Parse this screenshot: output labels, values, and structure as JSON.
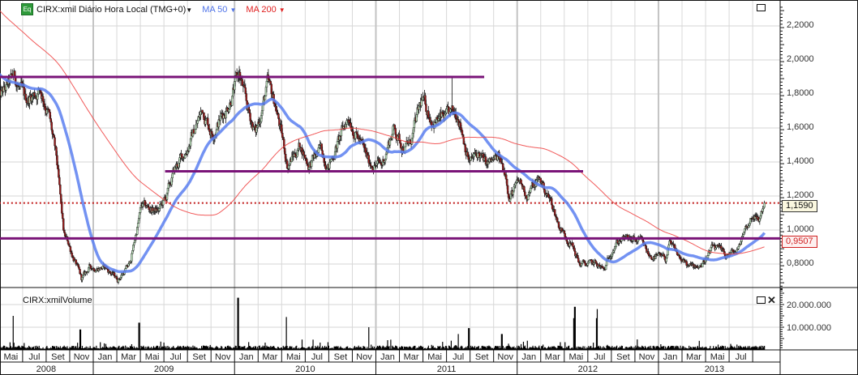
{
  "header": {
    "badge": "Eq",
    "symbol_label": "CIRX:xmil Diário Hora Local (TMG+0)",
    "ma50_label": "MA 50",
    "ma200_label": "MA 200"
  },
  "volume_pane": {
    "title": "CIRX:xmilVolume"
  },
  "price_tags": {
    "last": "1,1590",
    "level": "0,9507"
  },
  "colors": {
    "ma50": "#5b7ff0",
    "ma200": "#f04848",
    "levels": "#7a1478",
    "dotted": "#c01818",
    "up": "#bfe3bf",
    "down": "#9b1c1c"
  },
  "chart_data": {
    "type": "candlestick",
    "title": "CIRX:xmil Diário Hora Local (TMG+0)",
    "x_unit": "months since Jan 2008",
    "xlim": [
      4.0,
      69.5
    ],
    "price_ylim": [
      0.63,
      2.32
    ],
    "price_ticks": [
      {
        "v": 2.2,
        "label": "2,2000"
      },
      {
        "v": 2.0,
        "label": "2,0000"
      },
      {
        "v": 1.8,
        "label": "1,8000"
      },
      {
        "v": 1.6,
        "label": "1,6000"
      },
      {
        "v": 1.4,
        "label": "1,4000"
      },
      {
        "v": 1.2,
        "label": "1,2000"
      },
      {
        "v": 1.0,
        "label": "1,0000"
      },
      {
        "v": 0.8,
        "label": "0,8000"
      }
    ],
    "volume_ticks": [
      {
        "v": 20000000,
        "label": "20.000.000"
      },
      {
        "v": 10000000,
        "label": "10.000.000"
      }
    ],
    "close_path": [
      [
        4.1,
        1.78
      ],
      [
        5.3,
        1.9
      ],
      [
        6.2,
        1.76
      ],
      [
        7.5,
        1.83
      ],
      [
        8.2,
        1.69
      ],
      [
        8.9,
        1.4
      ],
      [
        9.5,
        0.97
      ],
      [
        9.9,
        0.92
      ],
      [
        11.0,
        0.71
      ],
      [
        11.7,
        0.78
      ],
      [
        13.0,
        0.78
      ],
      [
        14.1,
        0.71
      ],
      [
        15.1,
        0.8
      ],
      [
        16.1,
        1.14
      ],
      [
        17.5,
        1.11
      ],
      [
        18.2,
        1.19
      ],
      [
        18.9,
        1.35
      ],
      [
        19.9,
        1.47
      ],
      [
        21.3,
        1.71
      ],
      [
        22.1,
        1.57
      ],
      [
        23.4,
        1.73
      ],
      [
        24.4,
        1.92
      ],
      [
        25.1,
        1.71
      ],
      [
        25.8,
        1.57
      ],
      [
        26.8,
        1.85
      ],
      [
        27.5,
        1.73
      ],
      [
        28.5,
        1.38
      ],
      [
        29.6,
        1.5
      ],
      [
        30.3,
        1.38
      ],
      [
        31.3,
        1.47
      ],
      [
        32.0,
        1.38
      ],
      [
        33.7,
        1.67
      ],
      [
        35.4,
        1.4
      ],
      [
        36.5,
        1.38
      ],
      [
        37.5,
        1.6
      ],
      [
        38.2,
        1.5
      ],
      [
        38.9,
        1.5
      ],
      [
        39.9,
        1.76
      ],
      [
        40.9,
        1.64
      ],
      [
        42.0,
        1.66
      ],
      [
        43.0,
        1.69
      ],
      [
        43.7,
        1.47
      ],
      [
        44.0,
        1.4
      ],
      [
        44.7,
        1.45
      ],
      [
        45.4,
        1.38
      ],
      [
        46.4,
        1.42
      ],
      [
        47.1,
        1.33
      ],
      [
        47.3,
        1.19
      ],
      [
        48.2,
        1.28
      ],
      [
        48.8,
        1.21
      ],
      [
        49.9,
        1.3
      ],
      [
        50.9,
        1.16
      ],
      [
        51.6,
        1.02
      ],
      [
        52.6,
        0.92
      ],
      [
        53.3,
        0.8
      ],
      [
        54.7,
        0.8
      ],
      [
        55.4,
        0.76
      ],
      [
        56.1,
        0.9
      ],
      [
        56.8,
        0.95
      ],
      [
        58.5,
        0.93
      ],
      [
        59.2,
        0.85
      ],
      [
        60.6,
        0.83
      ],
      [
        60.9,
        0.92
      ],
      [
        61.9,
        0.83
      ],
      [
        62.6,
        0.78
      ],
      [
        63.7,
        0.8
      ],
      [
        64.7,
        0.9
      ],
      [
        65.7,
        0.85
      ],
      [
        66.8,
        0.88
      ],
      [
        67.1,
        0.97
      ],
      [
        68.1,
        1.1
      ],
      [
        68.5,
        1.05
      ],
      [
        69.0,
        1.159
      ]
    ],
    "spike_highs": [
      [
        42.5,
        1.9
      ]
    ],
    "horizontal_levels": [
      {
        "price": 1.9,
        "from": 4.0,
        "to": 45.2,
        "style": "solid"
      },
      {
        "price": 1.345,
        "from": 18.1,
        "to": 53.6,
        "style": "solid"
      },
      {
        "price": 0.9507,
        "from": 4.0,
        "to": 69.5,
        "style": "solid"
      },
      {
        "price": 1.159,
        "from": 4.0,
        "to": 69.5,
        "style": "dotted"
      }
    ],
    "moving_averages": [
      {
        "name": "MA 50",
        "period": 50
      },
      {
        "name": "MA 200",
        "period": 200
      }
    ],
    "volume_base": 1200000,
    "volume_spikes": [
      [
        5.2,
        15000000
      ],
      [
        10.9,
        9000000
      ],
      [
        15.9,
        12000000
      ],
      [
        24.3,
        23000000
      ],
      [
        28.4,
        14500000
      ],
      [
        35.4,
        10000000
      ],
      [
        43.0,
        7000000
      ],
      [
        43.9,
        9600000
      ],
      [
        46.7,
        7000000
      ],
      [
        52.8,
        14000000
      ],
      [
        52.9,
        19000000
      ],
      [
        54.8,
        18000000
      ],
      [
        54.75,
        14000000
      ]
    ],
    "x_month_labels": [
      "Mai",
      "Jul",
      "Set",
      "Nov",
      "Jan",
      "Mar",
      "Mai",
      "Jul",
      "Set",
      "Nov",
      "Jan",
      "Mar",
      "Mai",
      "Jul",
      "Set",
      "Nov",
      "Jan",
      "Mar",
      "Mai",
      "Jul",
      "Set",
      "Nov",
      "Jan",
      "Mar",
      "Mai",
      "Jul",
      "Set",
      "Nov",
      "Jan",
      "Mar",
      "Mai",
      "Jul"
    ],
    "x_year_labels": [
      "2008",
      "2009",
      "2010",
      "2011",
      "2012",
      "2013"
    ]
  }
}
